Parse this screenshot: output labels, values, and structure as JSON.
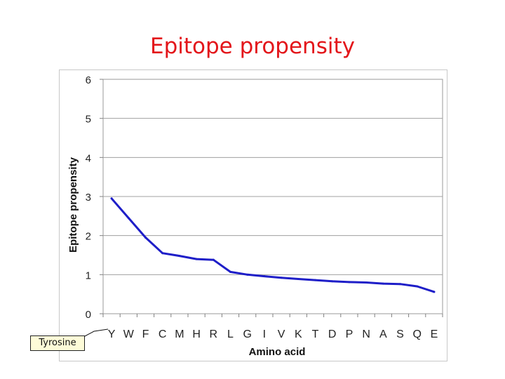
{
  "slide": {
    "title": "Epitope propensity"
  },
  "callout": {
    "label": "Tyrosine"
  },
  "chart_data": {
    "type": "line",
    "title": "",
    "xlabel": "Amino acid",
    "ylabel": "Epitope propensity",
    "categories": [
      "Y",
      "W",
      "F",
      "C",
      "M",
      "H",
      "R",
      "L",
      "G",
      "I",
      "V",
      "K",
      "T",
      "D",
      "P",
      "N",
      "A",
      "S",
      "Q",
      "E"
    ],
    "series": [
      {
        "values": [
          2.95,
          2.45,
          1.95,
          1.55,
          1.48,
          1.4,
          1.38,
          1.07,
          1.0,
          0.96,
          0.92,
          0.89,
          0.86,
          0.83,
          0.81,
          0.8,
          0.77,
          0.76,
          0.7,
          0.56
        ],
        "color": "#1e1ec8"
      }
    ],
    "ylim": [
      0,
      6
    ],
    "yticks": [
      "0",
      "1",
      "2",
      "3",
      "4",
      "5",
      "6"
    ],
    "grid": true,
    "legend": "none"
  }
}
